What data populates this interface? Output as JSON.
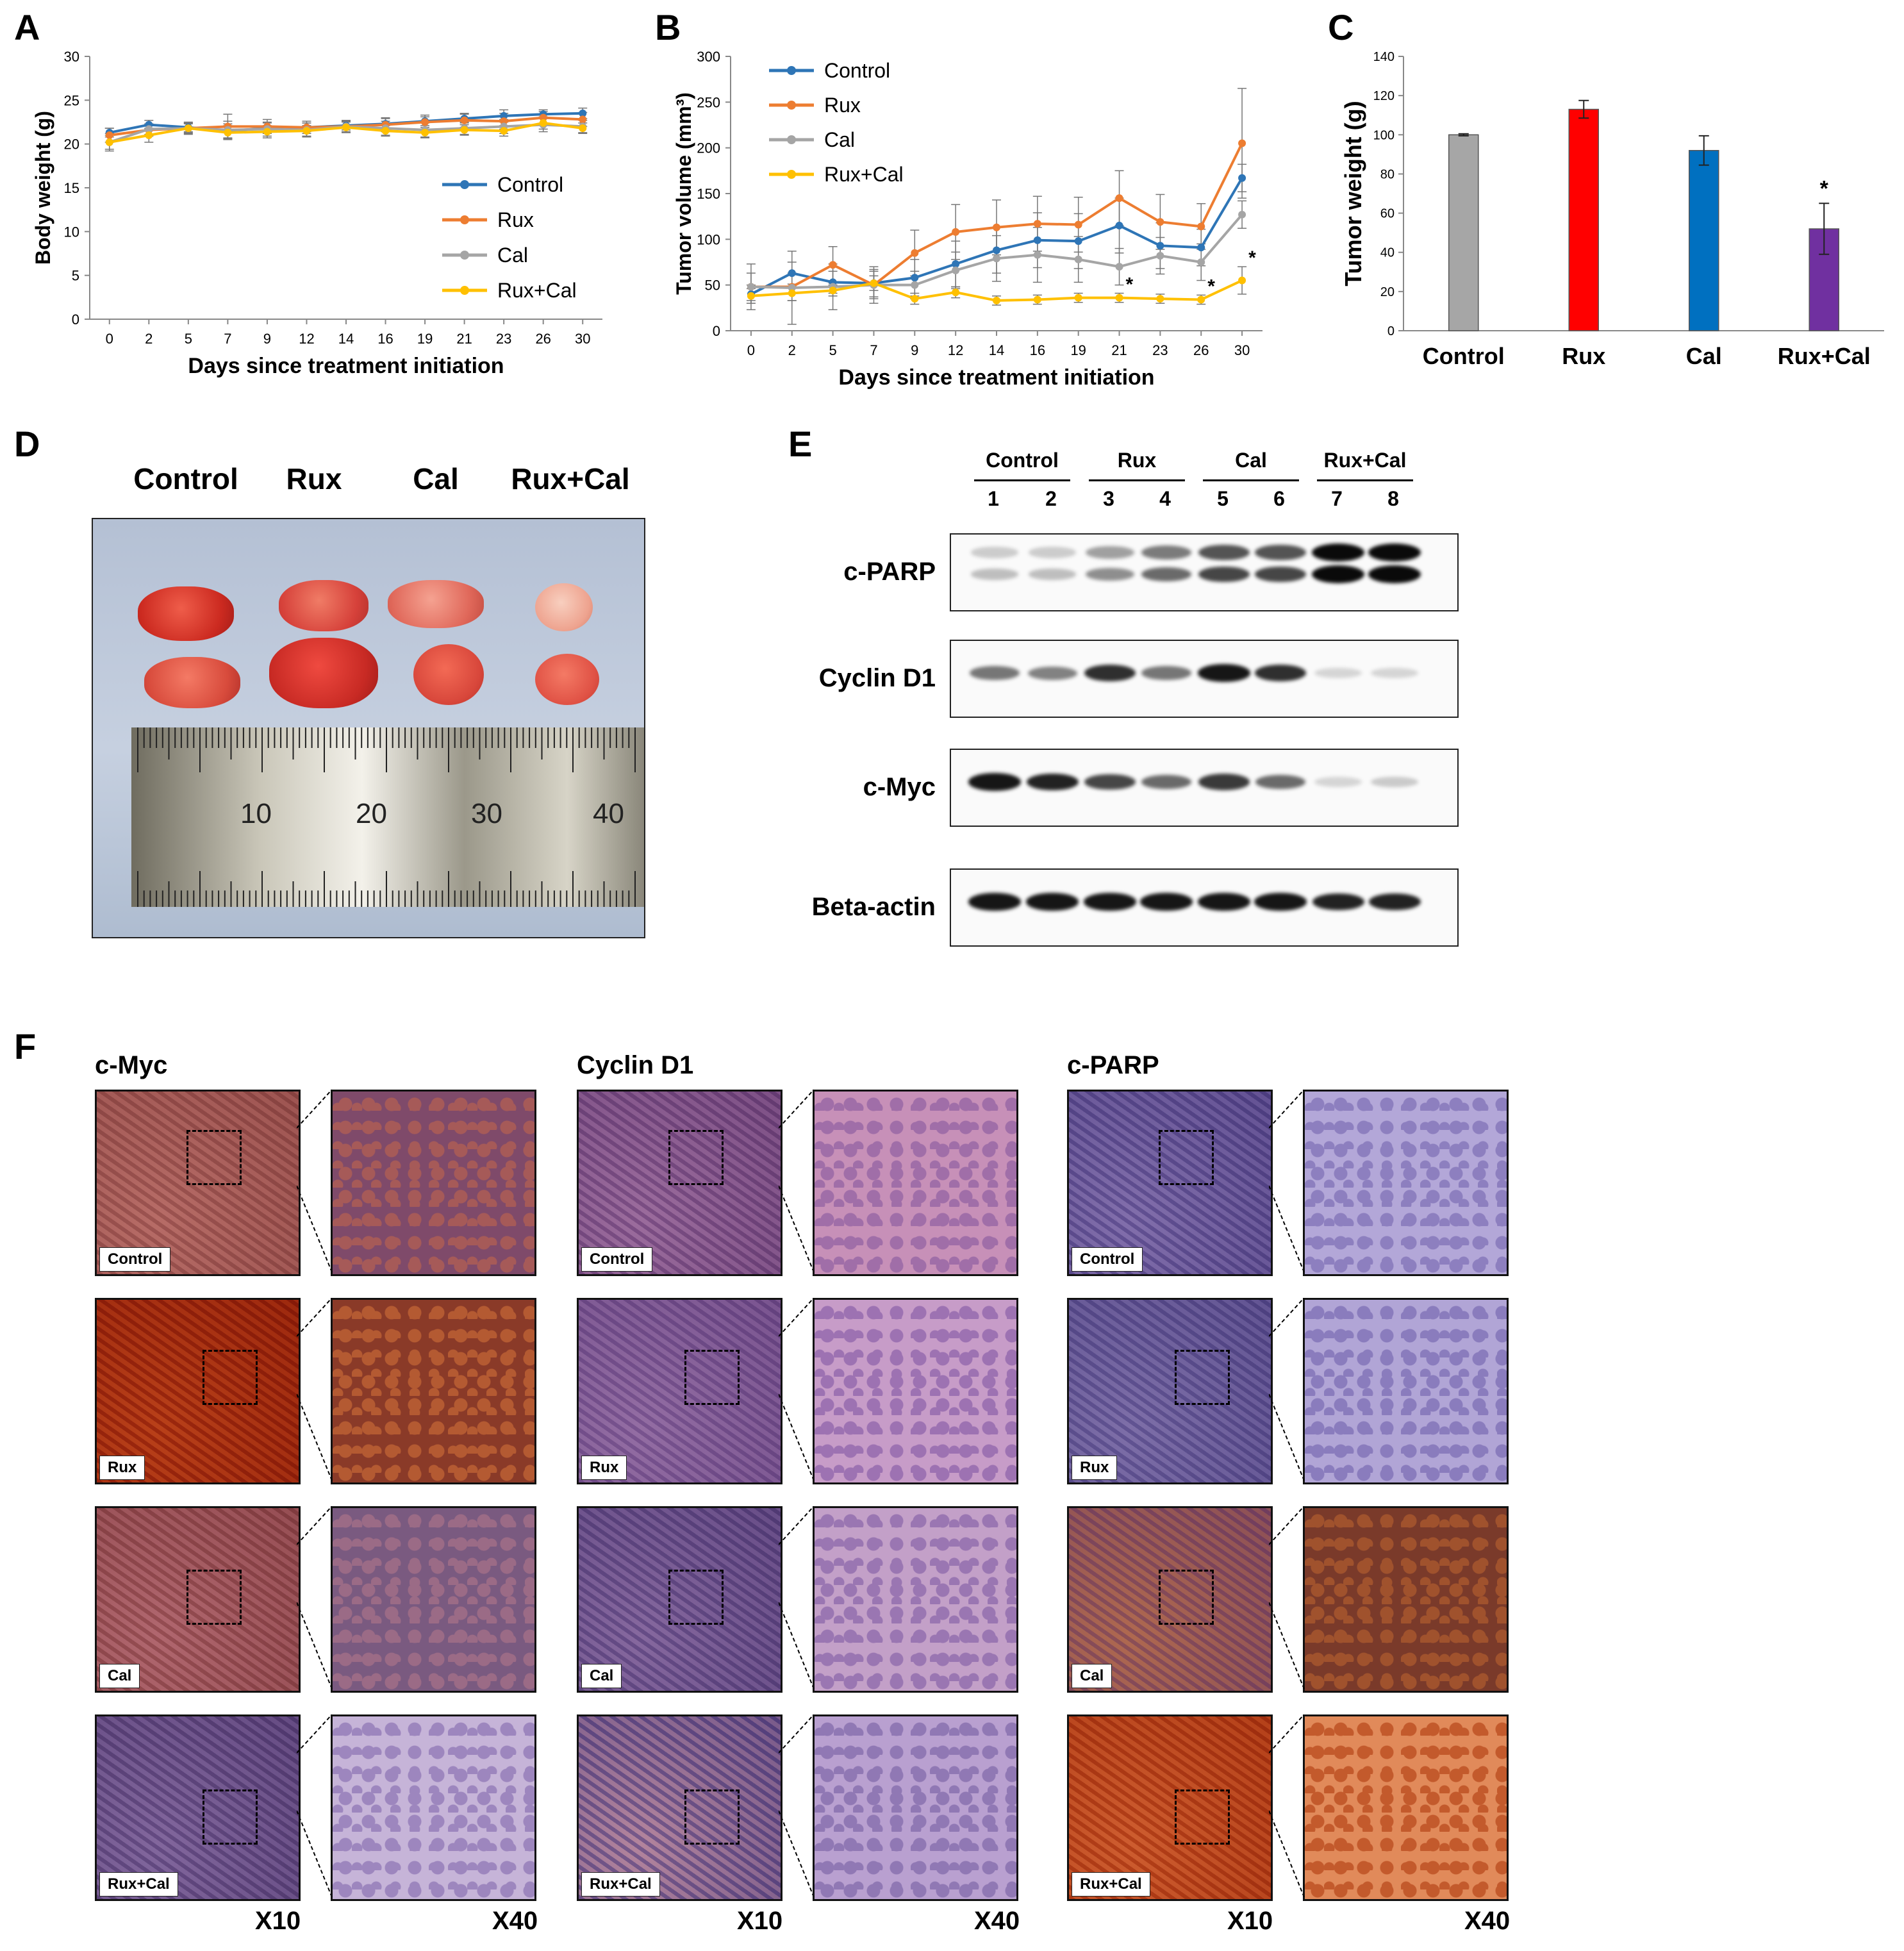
{
  "panels": {
    "A": {
      "letter": "A"
    },
    "B": {
      "letter": "B"
    },
    "C": {
      "letter": "C"
    },
    "D": {
      "letter": "D"
    },
    "E": {
      "letter": "E"
    },
    "F": {
      "letter": "F"
    }
  },
  "chart_data": [
    {
      "id": "A",
      "type": "line",
      "title": "",
      "xlabel": "Days since treatment initiation",
      "ylabel": "Body weight (g)",
      "categories": [
        "0",
        "2",
        "5",
        "7",
        "9",
        "12",
        "14",
        "16",
        "19",
        "21",
        "23",
        "26",
        "30"
      ],
      "ylim": [
        0,
        30
      ],
      "yticks": [
        0,
        5,
        10,
        15,
        20,
        25,
        30
      ],
      "legend_position": "lower-right",
      "series": [
        {
          "name": "Control",
          "color": "#2E75B6",
          "values": [
            21.3,
            22.2,
            21.9,
            21.5,
            21.8,
            21.9,
            22.1,
            22.3,
            22.6,
            22.9,
            23.2,
            23.4,
            23.5
          ],
          "err": [
            0.5,
            0.5,
            0.5,
            0.8,
            0.6,
            0.5,
            0.5,
            0.6,
            0.5,
            0.5,
            0.7,
            0.5,
            0.6
          ]
        },
        {
          "name": "Rux",
          "color": "#ED7D31",
          "values": [
            21.0,
            21.6,
            21.8,
            22.0,
            22.0,
            21.9,
            22.0,
            22.2,
            22.5,
            22.7,
            22.6,
            23.0,
            22.8
          ],
          "err": [
            0.8,
            0.7,
            0.7,
            1.4,
            0.8,
            0.7,
            0.6,
            0.8,
            0.8,
            0.8,
            0.9,
            0.7,
            0.8
          ]
        },
        {
          "name": "Cal",
          "color": "#A5A5A5",
          "values": [
            20.2,
            21.7,
            21.8,
            21.6,
            21.7,
            21.6,
            22.0,
            21.8,
            21.6,
            21.8,
            22.0,
            22.2,
            22.0
          ],
          "err": [
            0.8,
            0.6,
            0.5,
            1.0,
            0.8,
            0.8,
            0.7,
            0.8,
            0.8,
            0.7,
            0.8,
            0.8,
            0.7
          ]
        },
        {
          "name": "Rux+Cal",
          "color": "#FFC000",
          "values": [
            20.2,
            21.0,
            21.8,
            21.3,
            21.4,
            21.5,
            21.9,
            21.5,
            21.3,
            21.6,
            21.5,
            22.4,
            21.8
          ],
          "err": [
            1.0,
            0.8,
            0.6,
            0.8,
            0.7,
            0.6,
            0.6,
            0.6,
            0.6,
            0.6,
            0.6,
            0.7,
            0.6
          ]
        }
      ]
    },
    {
      "id": "B",
      "type": "line",
      "title": "",
      "xlabel": "Days since treatment initiation",
      "ylabel": "Tumor volume (mm³)",
      "categories": [
        "0",
        "2",
        "5",
        "7",
        "9",
        "12",
        "14",
        "16",
        "19",
        "21",
        "23",
        "26",
        "30"
      ],
      "ylim": [
        0,
        300
      ],
      "yticks": [
        0,
        50,
        100,
        150,
        200,
        250,
        300
      ],
      "legend_position": "top-left",
      "significance_marker": "*",
      "significance_at": [
        "21",
        "26",
        "30"
      ],
      "series": [
        {
          "name": "Control",
          "color": "#2E75B6",
          "values": [
            40,
            63,
            53,
            52,
            58,
            73,
            88,
            99,
            98,
            115,
            93,
            91,
            167
          ],
          "err": [
            10,
            12,
            12,
            15,
            20,
            25,
            25,
            30,
            30,
            30,
            25,
            20,
            15
          ]
        },
        {
          "name": "Rux",
          "color": "#ED7D31",
          "values": [
            48,
            48,
            72,
            50,
            85,
            108,
            113,
            117,
            116,
            145,
            119,
            114,
            205
          ],
          "err": [
            15,
            15,
            20,
            20,
            25,
            30,
            30,
            30,
            30,
            30,
            30,
            25,
            60
          ]
        },
        {
          "name": "Cal",
          "color": "#A5A5A5",
          "values": [
            48,
            47,
            48,
            50,
            50,
            66,
            79,
            83,
            78,
            70,
            82,
            75,
            127
          ],
          "err": [
            25,
            40,
            25,
            15,
            15,
            20,
            25,
            30,
            25,
            20,
            20,
            20,
            15
          ]
        },
        {
          "name": "Rux+Cal",
          "color": "#FFC000",
          "values": [
            38,
            41,
            44,
            52,
            35,
            42,
            33,
            34,
            36,
            36,
            35,
            34,
            55
          ],
          "err": [
            8,
            8,
            6,
            8,
            6,
            6,
            5,
            5,
            5,
            5,
            5,
            5,
            15
          ]
        }
      ]
    },
    {
      "id": "C",
      "type": "bar",
      "title": "",
      "xlabel": "",
      "ylabel": "Tumor weight (g)",
      "categories": [
        "Control",
        "Rux",
        "Cal",
        "Rux+Cal"
      ],
      "values": [
        100,
        113,
        92,
        52
      ],
      "err": [
        0.5,
        4.5,
        7.5,
        13
      ],
      "colors": [
        "#A6A6A6",
        "#FF0000",
        "#0070C0",
        "#7030A0"
      ],
      "ylim": [
        0,
        140
      ],
      "yticks": [
        0,
        20,
        40,
        60,
        80,
        100,
        120,
        140
      ],
      "significance_marker": "*",
      "significance_at": [
        "Rux+Cal"
      ]
    }
  ],
  "panelD": {
    "groups": [
      "Control",
      "Rux",
      "Cal",
      "Rux+Cal"
    ],
    "ruler_marks": [
      "10",
      "20",
      "30",
      "40"
    ]
  },
  "panelE": {
    "groups": [
      "Control",
      "Rux",
      "Cal",
      "Rux+Cal"
    ],
    "lanes": [
      "1",
      "2",
      "3",
      "4",
      "5",
      "6",
      "7",
      "8"
    ],
    "proteins": [
      {
        "name": "c-PARP",
        "intensity": [
          0.25,
          0.25,
          0.45,
          0.6,
          0.75,
          0.75,
          1.0,
          1.0
        ]
      },
      {
        "name": "Cyclin D1",
        "intensity": [
          0.55,
          0.5,
          0.85,
          0.55,
          0.95,
          0.85,
          0.15,
          0.15
        ]
      },
      {
        "name": "c-Myc",
        "intensity": [
          0.95,
          0.9,
          0.75,
          0.6,
          0.8,
          0.6,
          0.15,
          0.2
        ]
      },
      {
        "name": "Beta-actin",
        "intensity": [
          0.95,
          0.95,
          0.95,
          0.95,
          0.95,
          0.95,
          0.9,
          0.9
        ]
      }
    ]
  },
  "panelF": {
    "columns": [
      "c-Myc",
      "Cyclin D1",
      "c-PARP"
    ],
    "rows": [
      "Control",
      "Rux",
      "Cal",
      "Rux+Cal"
    ],
    "magnification_low": "X10",
    "magnification_high": "X40"
  }
}
